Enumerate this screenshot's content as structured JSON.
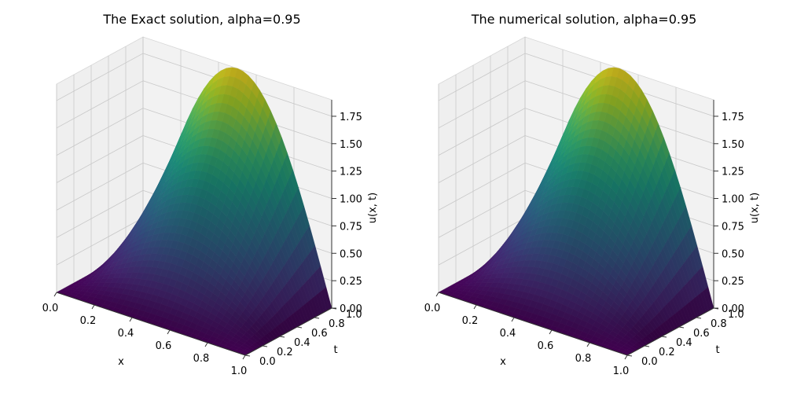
{
  "chart_data": [
    {
      "type": "surface3d",
      "title": "The Exact solution, alpha=0.95",
      "xlabel": "x",
      "ylabel": "t",
      "zlabel": "u(x, t)",
      "xlim": [
        0,
        1
      ],
      "ylim": [
        0,
        1
      ],
      "zlim": [
        0,
        1.9
      ],
      "xticks": [
        "0.0",
        "0.2",
        "0.4",
        "0.6",
        "0.8",
        "1.0"
      ],
      "yticks": [
        "0.0",
        "0.2",
        "0.4",
        "0.6",
        "0.8",
        "1.0"
      ],
      "zticks": [
        "0.00",
        "0.25",
        "0.50",
        "0.75",
        "1.00",
        "1.25",
        "1.50",
        "1.75"
      ],
      "colormap": "viridis",
      "grid": true,
      "surface_peak": {
        "x": 0.5,
        "t": 1.0,
        "u": 1.9
      }
    },
    {
      "type": "surface3d",
      "title": "The numerical solution, alpha=0.95",
      "xlabel": "x",
      "ylabel": "t",
      "zlabel": "u(x, t)",
      "xlim": [
        0,
        1
      ],
      "ylim": [
        0,
        1
      ],
      "zlim": [
        0,
        1.9
      ],
      "xticks": [
        "0.0",
        "0.2",
        "0.4",
        "0.6",
        "0.8",
        "1.0"
      ],
      "yticks": [
        "0.0",
        "0.2",
        "0.4",
        "0.6",
        "0.8",
        "1.0"
      ],
      "zticks": [
        "0.00",
        "0.25",
        "0.50",
        "0.75",
        "1.00",
        "1.25",
        "1.50",
        "1.75"
      ],
      "colormap": "viridis",
      "grid": true,
      "surface_peak": {
        "x": 0.5,
        "t": 1.0,
        "u": 1.9
      }
    }
  ]
}
